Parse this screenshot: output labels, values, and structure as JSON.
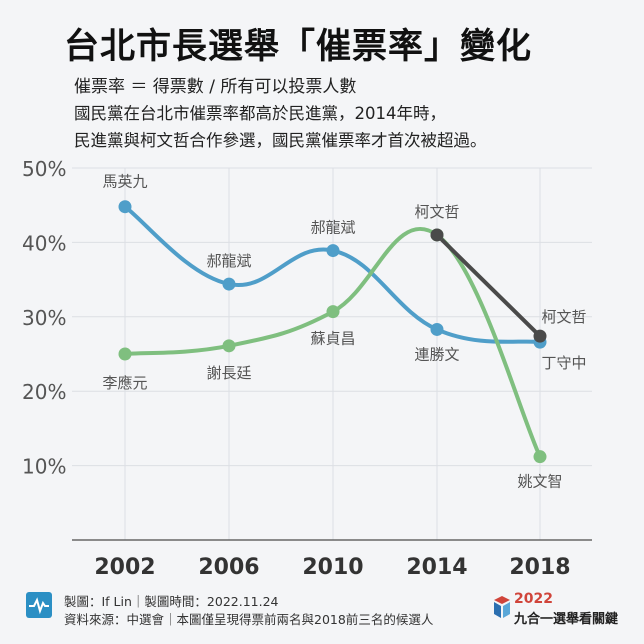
{
  "header": {
    "title": "台北市長選舉「催票率」變化",
    "formula": "催票率 ＝ 得票數 / 所有可以投票人數",
    "desc_line1": "國民黨在台北市催票率都高於民進黨，2014年時，",
    "desc_line2": "民進黨與柯文哲合作參選，國民黨催票率才首次被超過。"
  },
  "chart_data": {
    "type": "line",
    "x": [
      "2002",
      "2006",
      "2010",
      "2014",
      "2018"
    ],
    "yticks": [
      "50%",
      "40%",
      "30%",
      "20%",
      "10%"
    ],
    "ylim": [
      0,
      50
    ],
    "grid": true,
    "series": [
      {
        "color": "#4f9ec9",
        "values": [
          44.8,
          34.4,
          38.9,
          28.3,
          26.6
        ],
        "point_labels": [
          "馬英九",
          "郝龍斌",
          "郝龍斌",
          "連勝文",
          "丁守中"
        ]
      },
      {
        "color": "#7fbf7f",
        "values": [
          25.0,
          26.1,
          30.7,
          41.0,
          11.2
        ],
        "point_labels": [
          "李應元",
          "謝長廷",
          "蘇貞昌",
          "柯文哲",
          "姚文智"
        ]
      },
      {
        "color": "#4a4a4a",
        "x": [
          "2014",
          "2018"
        ],
        "values": [
          41.0,
          27.4
        ],
        "point_labels": [
          "",
          "柯文哲"
        ]
      }
    ]
  },
  "footer": {
    "line1": "製圖：If Lin｜製圖時間：2022.11.24",
    "line2": "資料來源：中選會｜本圖僅呈現得票前兩名與2018前三名的候選人",
    "brand_year": "2022",
    "brand_name": "九合一選舉看關鍵",
    "icon": "pulse-icon"
  }
}
